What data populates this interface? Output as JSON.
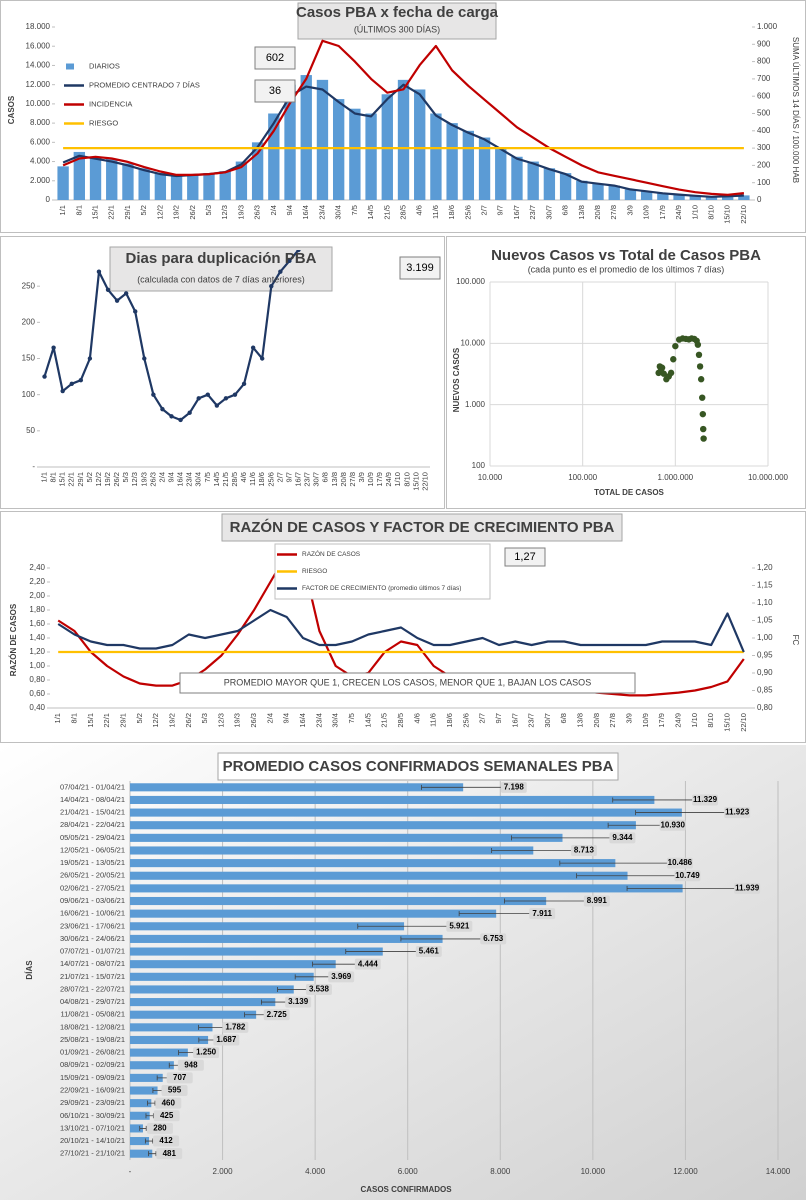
{
  "chart_data": [
    {
      "type": "bar",
      "title": "Casos PBA x fecha de carga",
      "subtitle": "(ÚLTIMOS 300 DÍAS)",
      "y_label": "CASOS",
      "y2_label": "SUMA ÚLTIMOS 14 DÍAS / 100.000 HAB",
      "annotations": [
        "602",
        "36"
      ],
      "categories": [
        "1/1",
        "8/1",
        "15/1",
        "22/1",
        "29/1",
        "5/2",
        "12/2",
        "19/2",
        "26/2",
        "5/3",
        "12/3",
        "19/3",
        "26/3",
        "2/4",
        "9/4",
        "16/4",
        "23/4",
        "30/4",
        "7/5",
        "14/5",
        "21/5",
        "28/5",
        "4/6",
        "11/6",
        "18/6",
        "25/6",
        "2/7",
        "9/7",
        "16/7",
        "23/7",
        "30/7",
        "6/8",
        "13/8",
        "20/8",
        "27/8",
        "3/9",
        "10/9",
        "17/9",
        "24/9",
        "1/10",
        "8/10",
        "15/10",
        "22/10"
      ],
      "series": [
        {
          "name": "DIARIOS",
          "type": "bar",
          "color": "#5b9bd5",
          "values": [
            3500,
            5000,
            4500,
            4300,
            3800,
            3300,
            2800,
            2500,
            2700,
            2800,
            3000,
            4000,
            6000,
            9000,
            12000,
            13000,
            12500,
            10500,
            9500,
            9000,
            11000,
            12500,
            11500,
            9000,
            8000,
            7200,
            6500,
            5500,
            4500,
            4000,
            3300,
            2800,
            2000,
            1700,
            1500,
            1100,
            900,
            700,
            550,
            450,
            350,
            400,
            480
          ]
        },
        {
          "name": "PROMEDIO CENTRADO 7 DÍAS",
          "type": "line",
          "color": "#1f3864",
          "values": [
            3900,
            4600,
            4300,
            4000,
            3600,
            3100,
            2700,
            2500,
            2600,
            2700,
            2900,
            3700,
            5500,
            8000,
            10800,
            11800,
            11500,
            10200,
            9000,
            8700,
            10500,
            12000,
            11000,
            8800,
            7800,
            7000,
            6300,
            5300,
            4300,
            3800,
            3200,
            2700,
            1900,
            1700,
            1500,
            1100,
            900,
            700,
            560,
            440,
            330,
            380,
            470
          ]
        },
        {
          "name": "INCIDENCIA",
          "type": "line",
          "axis": "y2",
          "color": "#c00000",
          "values": [
            200,
            240,
            250,
            240,
            220,
            190,
            165,
            145,
            145,
            150,
            160,
            190,
            270,
            400,
            560,
            700,
            920,
            890,
            800,
            700,
            620,
            640,
            780,
            890,
            750,
            660,
            580,
            500,
            420,
            360,
            300,
            250,
            200,
            160,
            140,
            120,
            100,
            80,
            60,
            45,
            35,
            30,
            40
          ]
        },
        {
          "name": "RIESGO",
          "type": "line",
          "axis": "y2",
          "color": "#ffc000",
          "values": [
            300,
            300,
            300,
            300,
            300,
            300,
            300,
            300,
            300,
            300,
            300,
            300,
            300,
            300,
            300,
            300,
            300,
            300,
            300,
            300,
            300,
            300,
            300,
            300,
            300,
            300,
            300,
            300,
            300,
            300,
            300,
            300,
            300,
            300,
            300,
            300,
            300,
            300,
            300,
            300,
            300,
            300,
            300
          ]
        }
      ],
      "ylim": [
        0,
        18000
      ],
      "yticks": [
        0,
        {
          "value": 2000,
          "label": "2.000"
        },
        {
          "value": 4000,
          "label": "4.000"
        },
        {
          "value": 6000,
          "label": "6.000"
        },
        {
          "value": 8000,
          "label": "8.000"
        },
        {
          "value": 10000,
          "label": "10.000"
        },
        {
          "value": 12000,
          "label": "12.000"
        },
        {
          "value": 14000,
          "label": "14.000"
        },
        {
          "value": 16000,
          "label": "16.000"
        },
        {
          "value": 18000,
          "label": "18.000"
        }
      ],
      "y2lim": [
        0,
        1000
      ],
      "y2ticks": [
        0,
        100,
        200,
        300,
        400,
        500,
        600,
        700,
        800,
        900,
        {
          "value": 1000,
          "label": "1.000"
        }
      ],
      "legend": "upper-left"
    },
    {
      "type": "line",
      "title": "Dias para duplicación PBA",
      "subtitle": "(calculada con datos de 7 días anteriores)",
      "annotations": [
        "3.199"
      ],
      "categories": [
        "1/1",
        "8/1",
        "15/1",
        "22/1",
        "29/1",
        "5/2",
        "12/2",
        "19/2",
        "26/2",
        "5/3",
        "12/3",
        "19/3",
        "26/3",
        "2/4",
        "9/4",
        "16/4",
        "23/4",
        "30/4",
        "7/5",
        "14/5",
        "21/5",
        "28/5",
        "4/6",
        "11/6",
        "18/6",
        "25/6",
        "2/7",
        "9/7",
        "16/7",
        "23/7",
        "30/7",
        "6/8",
        "13/8",
        "20/8",
        "27/8",
        "3/9",
        "10/9",
        "17/9",
        "24/9",
        "1/10",
        "8/10",
        "15/10",
        "22/10"
      ],
      "color": "#1f3864",
      "values": [
        125,
        165,
        105,
        115,
        120,
        150,
        270,
        245,
        230,
        240,
        215,
        150,
        100,
        80,
        70,
        65,
        75,
        95,
        100,
        85,
        95,
        100,
        115,
        165,
        150,
        250,
        270,
        285,
        300,
        null,
        null,
        null,
        null,
        null,
        null,
        null,
        null,
        null,
        null,
        null,
        null,
        null,
        null
      ],
      "ylim": [
        0,
        300
      ],
      "yticks": [
        {
          "value": 0,
          "label": "-"
        },
        50,
        100,
        150,
        200,
        250
      ]
    },
    {
      "type": "scatter",
      "title": "Nuevos Casos vs Total de Casos PBA",
      "subtitle": "(cada punto es el promedio de los últimos 7 días)",
      "x_label": "TOTAL DE CASOS",
      "y_label": "NUEVOS CASOS",
      "log_x": true,
      "log_y": true,
      "grid": true,
      "color": "#375623",
      "x": [
        660000,
        680000,
        700000,
        720000,
        750000,
        800000,
        850000,
        900000,
        950000,
        1000000,
        1100000,
        1200000,
        1300000,
        1400000,
        1500000,
        1600000,
        1700000,
        1750000,
        1800000,
        1850000,
        1900000,
        1950000,
        1980000,
        2000000,
        2020000
      ],
      "y": [
        3300,
        4200,
        3600,
        4000,
        3200,
        2600,
        2900,
        3300,
        5500,
        9000,
        11500,
        12000,
        11800,
        11600,
        12000,
        11800,
        11000,
        9500,
        6500,
        4200,
        2600,
        1300,
        700,
        400,
        280
      ],
      "xlim": [
        10000,
        10000000
      ],
      "xticks": [
        {
          "value": 10000,
          "label": "10.000"
        },
        {
          "value": 100000,
          "label": "100.000"
        },
        {
          "value": 1000000,
          "label": "1.000.000"
        },
        {
          "value": 10000000,
          "label": "10.000.000"
        }
      ],
      "ylim": [
        100,
        100000
      ],
      "yticks": [
        100,
        {
          "value": 1000,
          "label": "1.000"
        },
        {
          "value": 10000,
          "label": "10.000"
        },
        {
          "value": 100000,
          "label": "100.000"
        }
      ]
    },
    {
      "type": "line",
      "title": "RAZÓN DE CASOS Y FACTOR DE CRECIMIENTO PBA",
      "y_label": "RAZÓN DE CASOS",
      "y2_label": "FC",
      "annotations": [
        "1,27",
        "PROMEDIO MAYOR QUE 1, CRECEN LOS CASOS, MENOR QUE 1, BAJAN LOS CASOS"
      ],
      "categories": [
        "1/1",
        "8/1",
        "15/1",
        "22/1",
        "29/1",
        "5/2",
        "12/2",
        "19/2",
        "26/2",
        "5/3",
        "12/3",
        "19/3",
        "26/3",
        "2/4",
        "9/4",
        "16/4",
        "23/4",
        "30/4",
        "7/5",
        "14/5",
        "21/5",
        "28/5",
        "4/6",
        "11/6",
        "18/6",
        "25/6",
        "2/7",
        "9/7",
        "16/7",
        "23/7",
        "30/7",
        "6/8",
        "13/8",
        "20/8",
        "27/8",
        "3/9",
        "10/9",
        "17/9",
        "24/9",
        "1/10",
        "8/10",
        "15/10",
        "22/10"
      ],
      "series": [
        {
          "name": "RAZÓN DE CASOS",
          "color": "#c00000",
          "values": [
            1.65,
            1.5,
            1.2,
            1.0,
            0.85,
            0.75,
            0.72,
            0.72,
            0.8,
            0.95,
            1.15,
            1.45,
            1.8,
            2.2,
            2.6,
            2.5,
            1.5,
            1.0,
            0.85,
            0.9,
            1.2,
            1.35,
            1.3,
            1.0,
            0.85,
            0.8,
            0.8,
            0.75,
            0.72,
            0.7,
            0.7,
            0.68,
            0.65,
            0.62,
            0.6,
            0.58,
            0.58,
            0.6,
            0.62,
            0.65,
            0.7,
            0.78,
            1.1
          ]
        },
        {
          "name": "RIESGO",
          "color": "#ffc000",
          "values": [
            1.2,
            1.2,
            1.2,
            1.2,
            1.2,
            1.2,
            1.2,
            1.2,
            1.2,
            1.2,
            1.2,
            1.2,
            1.2,
            1.2,
            1.2,
            1.2,
            1.2,
            1.2,
            1.2,
            1.2,
            1.2,
            1.2,
            1.2,
            1.2,
            1.2,
            1.2,
            1.2,
            1.2,
            1.2,
            1.2,
            1.2,
            1.2,
            1.2,
            1.2,
            1.2,
            1.2,
            1.2,
            1.2,
            1.2,
            1.2,
            1.2,
            1.2,
            1.2
          ]
        },
        {
          "name": "FACTOR DE CRECIMIENTO (promedio últimos 7 días)",
          "axis": "y2",
          "color": "#1f3864",
          "values": [
            1.04,
            1.01,
            0.99,
            0.98,
            0.98,
            0.97,
            0.97,
            0.98,
            1.01,
            1.0,
            1.01,
            1.02,
            1.05,
            1.08,
            1.06,
            1.0,
            0.98,
            0.98,
            0.99,
            1.01,
            1.02,
            1.03,
            1.0,
            0.98,
            0.98,
            0.99,
            1.0,
            0.98,
            0.99,
            0.98,
            0.99,
            0.99,
            0.98,
            0.98,
            0.98,
            0.98,
            0.98,
            0.99,
            0.99,
            0.99,
            0.98,
            1.07,
            0.96
          ]
        }
      ],
      "ylim": [
        0.4,
        2.4
      ],
      "yticks": [
        {
          "value": 0.4,
          "label": "0,40"
        },
        {
          "value": 0.6,
          "label": "0,60"
        },
        {
          "value": 0.8,
          "label": "0,80"
        },
        {
          "value": 1.0,
          "label": "1,00"
        },
        {
          "value": 1.2,
          "label": "1,20"
        },
        {
          "value": 1.4,
          "label": "1,40"
        },
        {
          "value": 1.6,
          "label": "1,60"
        },
        {
          "value": 1.8,
          "label": "1,80"
        },
        {
          "value": 2.0,
          "label": "2,00"
        },
        {
          "value": 2.2,
          "label": "2,20"
        },
        {
          "value": 2.4,
          "label": "2,40"
        }
      ],
      "y2lim": [
        0.8,
        1.2
      ],
      "y2ticks": [
        {
          "value": 0.8,
          "label": "0,80"
        },
        {
          "value": 0.85,
          "label": "0,85"
        },
        {
          "value": 0.9,
          "label": "0,90"
        },
        {
          "value": 0.95,
          "label": "0,95"
        },
        {
          "value": 1.0,
          "label": "1,00"
        },
        {
          "value": 1.05,
          "label": "1,05"
        },
        {
          "value": 1.1,
          "label": "1,10"
        },
        {
          "value": 1.15,
          "label": "1,15"
        },
        {
          "value": 1.2,
          "label": "1,20"
        }
      ],
      "legend": "upper-center"
    },
    {
      "type": "bar",
      "orientation": "horizontal",
      "title": "PROMEDIO CASOS CONFIRMADOS SEMANALES PBA",
      "x_label": "CASOS CONFIRMADOS",
      "y_label": "DÍAS",
      "color": "#5b9bd5",
      "grid": true,
      "categories": [
        "07/04/21 - 01/04/21",
        "14/04/21 - 08/04/21",
        "21/04/21 - 15/04/21",
        "28/04/21 - 22/04/21",
        "05/05/21 - 29/04/21",
        "12/05/21 - 06/05/21",
        "19/05/21 - 13/05/21",
        "26/05/21 - 20/05/21",
        "02/06/21 - 27/05/21",
        "09/06/21 - 03/06/21",
        "16/06/21 - 10/06/21",
        "23/06/21 - 17/06/21",
        "30/06/21 - 24/06/21",
        "07/07/21 - 01/07/21",
        "14/07/21 - 08/07/21",
        "21/07/21 - 15/07/21",
        "28/07/21 - 22/07/21",
        "04/08/21 - 29/07/21",
        "11/08/21 - 05/08/21",
        "18/08/21 - 12/08/21",
        "25/08/21 - 19/08/21",
        "01/09/21 - 26/08/21",
        "08/09/21 - 02/09/21",
        "15/09/21 - 09/09/21",
        "22/09/21 - 16/09/21",
        "29/09/21 - 23/09/21",
        "06/10/21 - 30/09/21",
        "13/10/21 - 07/10/21",
        "20/10/21 - 14/10/21",
        "27/10/21 - 21/10/21"
      ],
      "values": [
        7198,
        11329,
        11923,
        10930,
        9344,
        8713,
        10486,
        10749,
        11939,
        8991,
        7911,
        5921,
        6753,
        5461,
        4444,
        3969,
        3538,
        3139,
        2725,
        1782,
        1687,
        1250,
        948,
        707,
        595,
        460,
        425,
        280,
        412,
        481
      ],
      "value_labels": [
        "7.198",
        "11.329",
        "11.923",
        "10.930",
        "9.344",
        "8.713",
        "10.486",
        "10.749",
        "11.939",
        "8.991",
        "7.911",
        "5.921",
        "6.753",
        "5.461",
        "4.444",
        "3.969",
        "3.538",
        "3.139",
        "2.725",
        "1.782",
        "1.687",
        "1.250",
        "948",
        "707",
        "595",
        "460",
        "425",
        "280",
        "412",
        "481"
      ],
      "errors": [
        900,
        900,
        1000,
        600,
        1100,
        900,
        1200,
        1100,
        1200,
        900,
        800,
        1000,
        900,
        800,
        500,
        400,
        350,
        300,
        250,
        300,
        200,
        200,
        100,
        120,
        100,
        80,
        80,
        70,
        80,
        80
      ],
      "xlim": [
        0,
        14000
      ],
      "xticks": [
        {
          "value": 0,
          "label": "-"
        },
        {
          "value": 2000,
          "label": "2.000"
        },
        {
          "value": 4000,
          "label": "4.000"
        },
        {
          "value": 6000,
          "label": "6.000"
        },
        {
          "value": 8000,
          "label": "8.000"
        },
        {
          "value": 10000,
          "label": "10.000"
        },
        {
          "value": 12000,
          "label": "12.000"
        },
        {
          "value": 14000,
          "label": "14.000"
        }
      ]
    }
  ]
}
